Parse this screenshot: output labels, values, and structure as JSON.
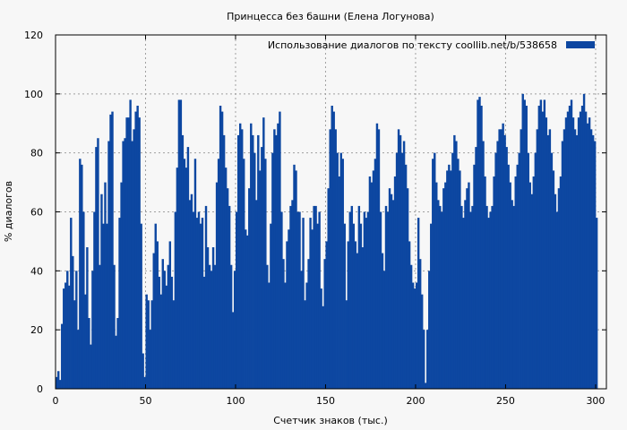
{
  "chart_data": {
    "type": "bar",
    "title": "Принцесса без башни (Елена Логунова)",
    "xlabel": "Счетчик знаков (тыс.)",
    "ylabel": "% диалогов",
    "legend": {
      "label": "Использование диалогов по тексту  coollib.net/b/538658",
      "position": "top-right",
      "color": "#0d47a1"
    },
    "xlim": [
      0,
      306
    ],
    "ylim": [
      0,
      120
    ],
    "x_ticks": [
      0,
      50,
      100,
      150,
      200,
      250,
      300
    ],
    "y_ticks": [
      0,
      20,
      40,
      60,
      80,
      100,
      120
    ],
    "grid": true,
    "bar_color": "#0d47a1",
    "series": [
      {
        "name": "Использование диалогов по тексту  coollib.net/b/538658",
        "x_start": 0,
        "x_step": 1,
        "values": [
          4,
          6,
          3,
          22,
          34,
          36,
          40,
          35,
          58,
          45,
          30,
          40,
          20,
          78,
          76,
          60,
          32,
          48,
          24,
          15,
          40,
          60,
          82,
          85,
          42,
          66,
          56,
          70,
          56,
          84,
          93,
          94,
          42,
          18,
          24,
          58,
          70,
          84,
          85,
          92,
          92,
          98,
          84,
          88,
          94,
          96,
          92,
          56,
          12,
          4,
          32,
          30,
          20,
          30,
          46,
          56,
          50,
          38,
          32,
          44,
          40,
          35,
          42,
          50,
          38,
          30,
          60,
          75,
          98,
          98,
          86,
          78,
          75,
          82,
          64,
          66,
          60,
          78,
          58,
          60,
          56,
          58,
          38,
          62,
          48,
          42,
          40,
          48,
          42,
          70,
          78,
          96,
          94,
          86,
          75,
          68,
          62,
          42,
          26,
          40,
          60,
          86,
          90,
          88,
          78,
          54,
          52,
          68,
          90,
          86,
          80,
          64,
          86,
          74,
          82,
          92,
          78,
          42,
          36,
          56,
          80,
          88,
          86,
          90,
          94,
          60,
          44,
          36,
          50,
          54,
          62,
          64,
          76,
          74,
          60,
          60,
          40,
          58,
          30,
          36,
          44,
          58,
          54,
          62,
          62,
          56,
          60,
          34,
          28,
          44,
          50,
          68,
          88,
          96,
          94,
          88,
          80,
          72,
          80,
          78,
          56,
          30,
          50,
          60,
          62,
          56,
          50,
          46,
          62,
          56,
          48,
          60,
          58,
          60,
          72,
          70,
          74,
          78,
          90,
          88,
          60,
          46,
          40,
          62,
          60,
          68,
          66,
          64,
          72,
          80,
          88,
          86,
          80,
          84,
          76,
          68,
          50,
          42,
          36,
          34,
          36,
          58,
          44,
          32,
          20,
          2,
          20,
          40,
          56,
          78,
          80,
          70,
          64,
          62,
          60,
          68,
          70,
          74,
          76,
          74,
          80,
          86,
          84,
          78,
          74,
          62,
          58,
          64,
          68,
          70,
          60,
          62,
          76,
          82,
          98,
          99,
          96,
          84,
          72,
          62,
          58,
          60,
          62,
          72,
          80,
          84,
          88,
          88,
          90,
          86,
          82,
          76,
          70,
          64,
          62,
          72,
          76,
          80,
          88,
          100,
          98,
          96,
          80,
          70,
          66,
          72,
          80,
          88,
          96,
          98,
          94,
          98,
          92,
          86,
          88,
          80,
          74,
          66,
          60,
          68,
          72,
          84,
          88,
          92,
          94,
          96,
          98,
          92,
          88,
          86,
          92,
          94,
          96,
          100,
          94,
          90,
          92,
          88,
          86,
          84,
          58
        ]
      }
    ]
  }
}
